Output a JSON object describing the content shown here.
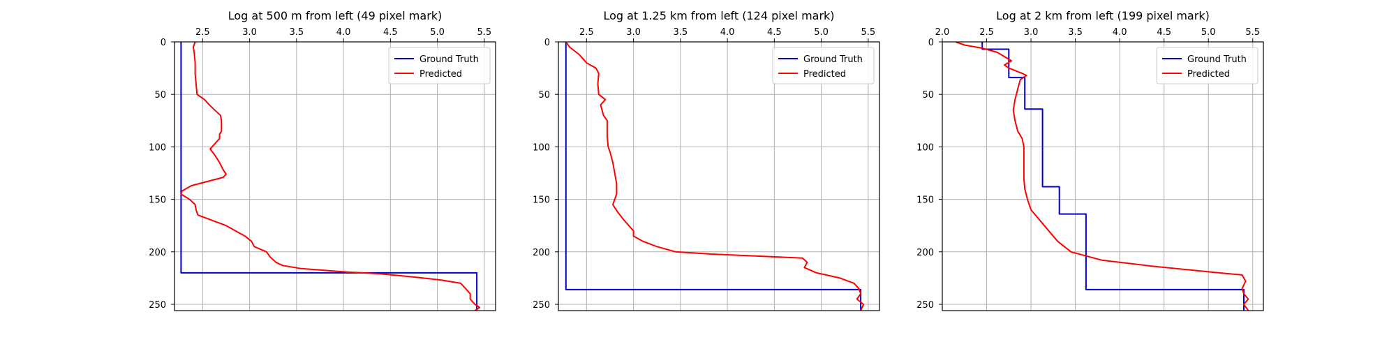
{
  "colors": {
    "ground_truth": "#0000cc",
    "predicted": "#ff0000",
    "grid": "#b0b0b0",
    "axes": "#000000"
  },
  "chart_data": [
    {
      "type": "line",
      "title": "Log at 500 m from left (49 pixel mark)",
      "xlim": [
        2.2,
        5.62
      ],
      "ylim": [
        256,
        0
      ],
      "xticks": [
        2.5,
        3.0,
        3.5,
        4.0,
        4.5,
        5.0,
        5.5
      ],
      "yticks": [
        0,
        50,
        100,
        150,
        200,
        250
      ],
      "grid": true,
      "legend_position": "top-right",
      "series": [
        {
          "name": "Ground Truth",
          "color_key": "ground_truth",
          "points": [
            [
              2.27,
              0
            ],
            [
              2.27,
              220
            ],
            [
              5.42,
              220
            ],
            [
              5.42,
              256
            ]
          ]
        },
        {
          "name": "Predicted",
          "color_key": "predicted",
          "points": [
            [
              2.42,
              0
            ],
            [
              2.4,
              5
            ],
            [
              2.41,
              10
            ],
            [
              2.42,
              20
            ],
            [
              2.42,
              30
            ],
            [
              2.43,
              40
            ],
            [
              2.44,
              50
            ],
            [
              2.52,
              55
            ],
            [
              2.57,
              60
            ],
            [
              2.63,
              65
            ],
            [
              2.69,
              70
            ],
            [
              2.7,
              75
            ],
            [
              2.7,
              80
            ],
            [
              2.7,
              85
            ],
            [
              2.68,
              88
            ],
            [
              2.68,
              92
            ],
            [
              2.63,
              97
            ],
            [
              2.58,
              102
            ],
            [
              2.63,
              108
            ],
            [
              2.68,
              115
            ],
            [
              2.72,
              122
            ],
            [
              2.75,
              126
            ],
            [
              2.72,
              129
            ],
            [
              2.55,
              133
            ],
            [
              2.38,
              137
            ],
            [
              2.28,
              142
            ],
            [
              2.27,
              145
            ],
            [
              2.36,
              150
            ],
            [
              2.42,
              155
            ],
            [
              2.43,
              160
            ],
            [
              2.45,
              165
            ],
            [
              2.6,
              170
            ],
            [
              2.75,
              175
            ],
            [
              2.85,
              180
            ],
            [
              2.95,
              185
            ],
            [
              3.02,
              190
            ],
            [
              3.05,
              195
            ],
            [
              3.18,
              200
            ],
            [
              3.22,
              205
            ],
            [
              3.28,
              210
            ],
            [
              3.35,
              213
            ],
            [
              3.55,
              216
            ],
            [
              4.0,
              219
            ],
            [
              4.4,
              221
            ],
            [
              4.75,
              224
            ],
            [
              5.05,
              227
            ],
            [
              5.25,
              230
            ],
            [
              5.3,
              235
            ],
            [
              5.35,
              240
            ],
            [
              5.35,
              245
            ],
            [
              5.4,
              250
            ],
            [
              5.45,
              253
            ],
            [
              5.4,
              256
            ]
          ]
        }
      ]
    },
    {
      "type": "line",
      "title": "Log at 1.25 km from left (124 pixel mark)",
      "xlim": [
        2.2,
        5.62
      ],
      "ylim": [
        256,
        0
      ],
      "xticks": [
        2.5,
        3.0,
        3.5,
        4.0,
        4.5,
        5.0,
        5.5
      ],
      "yticks": [
        0,
        50,
        100,
        150,
        200,
        250
      ],
      "grid": true,
      "legend_position": "top-right",
      "series": [
        {
          "name": "Ground Truth",
          "color_key": "ground_truth",
          "points": [
            [
              2.28,
              0
            ],
            [
              2.28,
              236
            ],
            [
              5.42,
              236
            ],
            [
              5.42,
              256
            ]
          ]
        },
        {
          "name": "Predicted",
          "color_key": "predicted",
          "points": [
            [
              2.28,
              0
            ],
            [
              2.32,
              5
            ],
            [
              2.42,
              12
            ],
            [
              2.5,
              20
            ],
            [
              2.6,
              25
            ],
            [
              2.63,
              30
            ],
            [
              2.62,
              40
            ],
            [
              2.63,
              50
            ],
            [
              2.7,
              55
            ],
            [
              2.65,
              60
            ],
            [
              2.68,
              70
            ],
            [
              2.72,
              75
            ],
            [
              2.72,
              80
            ],
            [
              2.72,
              90
            ],
            [
              2.73,
              100
            ],
            [
              2.75,
              105
            ],
            [
              2.78,
              115
            ],
            [
              2.8,
              125
            ],
            [
              2.82,
              135
            ],
            [
              2.82,
              145
            ],
            [
              2.78,
              155
            ],
            [
              2.83,
              162
            ],
            [
              2.9,
              170
            ],
            [
              3.0,
              180
            ],
            [
              3.0,
              185
            ],
            [
              3.1,
              190
            ],
            [
              3.25,
              195
            ],
            [
              3.45,
              200
            ],
            [
              3.8,
              202
            ],
            [
              4.3,
              204
            ],
            [
              4.8,
              206
            ],
            [
              4.85,
              210
            ],
            [
              4.82,
              215
            ],
            [
              4.95,
              220
            ],
            [
              5.2,
              225
            ],
            [
              5.35,
              230
            ],
            [
              5.4,
              235
            ],
            [
              5.42,
              240
            ],
            [
              5.38,
              245
            ],
            [
              5.45,
              250
            ],
            [
              5.42,
              256
            ]
          ]
        }
      ]
    },
    {
      "type": "line",
      "title": "Log at 2 km from left (199 pixel mark)",
      "xlim": [
        2.0,
        5.62
      ],
      "ylim": [
        256,
        0
      ],
      "xticks": [
        2.0,
        2.5,
        3.0,
        3.5,
        4.0,
        4.5,
        5.0,
        5.5
      ],
      "yticks": [
        0,
        50,
        100,
        150,
        200,
        250
      ],
      "grid": true,
      "legend_position": "top-right",
      "series": [
        {
          "name": "Ground Truth",
          "color_key": "ground_truth",
          "points": [
            [
              2.45,
              0
            ],
            [
              2.45,
              7
            ],
            [
              2.75,
              7
            ],
            [
              2.75,
              34
            ],
            [
              2.93,
              34
            ],
            [
              2.93,
              64
            ],
            [
              3.13,
              64
            ],
            [
              3.13,
              138
            ],
            [
              3.32,
              138
            ],
            [
              3.32,
              164
            ],
            [
              3.62,
              164
            ],
            [
              3.62,
              236
            ],
            [
              5.4,
              236
            ],
            [
              5.4,
              256
            ]
          ]
        },
        {
          "name": "Predicted",
          "color_key": "predicted",
          "points": [
            [
              2.15,
              0
            ],
            [
              2.25,
              3
            ],
            [
              2.45,
              6
            ],
            [
              2.62,
              10
            ],
            [
              2.78,
              18
            ],
            [
              2.7,
              22
            ],
            [
              2.75,
              25
            ],
            [
              2.9,
              30
            ],
            [
              2.95,
              32
            ],
            [
              2.88,
              36
            ],
            [
              2.85,
              45
            ],
            [
              2.82,
              55
            ],
            [
              2.8,
              65
            ],
            [
              2.82,
              75
            ],
            [
              2.85,
              85
            ],
            [
              2.9,
              92
            ],
            [
              2.92,
              100
            ],
            [
              2.92,
              110
            ],
            [
              2.92,
              120
            ],
            [
              2.92,
              130
            ],
            [
              2.93,
              140
            ],
            [
              2.96,
              150
            ],
            [
              3.0,
              160
            ],
            [
              3.1,
              170
            ],
            [
              3.2,
              180
            ],
            [
              3.3,
              190
            ],
            [
              3.45,
              200
            ],
            [
              3.8,
              208
            ],
            [
              4.4,
              214
            ],
            [
              5.0,
              219
            ],
            [
              5.38,
              222
            ],
            [
              5.42,
              228
            ],
            [
              5.38,
              235
            ],
            [
              5.4,
              240
            ],
            [
              5.45,
              245
            ],
            [
              5.4,
              250
            ],
            [
              5.45,
              256
            ]
          ]
        }
      ]
    }
  ]
}
